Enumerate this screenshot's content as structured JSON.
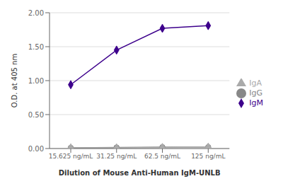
{
  "chart_data": {
    "type": "line",
    "xlabel": "Dilution of Mouse Anti-Human IgM-UNLB",
    "ylabel": "O.D. at 405 nm",
    "categories": [
      "15.625 ng/mL",
      "31.25 ng/mL",
      "62.5 ng/mL",
      "125 ng/mL"
    ],
    "series": [
      {
        "name": "IgM",
        "color": "#3d008c",
        "marker": "diamond",
        "values": [
          0.94,
          1.45,
          1.77,
          1.81
        ]
      },
      {
        "name": "IgG",
        "color": "#888888",
        "marker": "circle",
        "values": [
          0.01,
          0.015,
          0.02,
          0.02
        ]
      },
      {
        "name": "IgA",
        "color": "#aaaaaa",
        "marker": "triangle",
        "values": [
          0.01,
          0.01,
          0.015,
          0.02
        ]
      }
    ],
    "ylim": [
      0.0,
      2.0
    ],
    "yticks": [
      {
        "value": 0.0,
        "label": "0.00"
      },
      {
        "value": 0.5,
        "label": "0.50"
      },
      {
        "value": 1.0,
        "label": "1.00"
      },
      {
        "value": 1.5,
        "label": "1.50"
      },
      {
        "value": 2.0,
        "label": "2.00"
      }
    ],
    "grid": true,
    "legend": "right"
  }
}
